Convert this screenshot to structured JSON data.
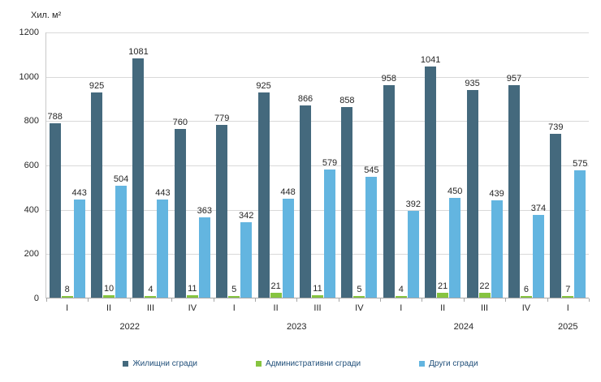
{
  "chart_data": {
    "type": "bar",
    "title": "",
    "ylabel": "Хил. м²",
    "xlabel": "",
    "ylim": [
      0,
      1200
    ],
    "yticks": [
      0,
      200,
      400,
      600,
      800,
      1000,
      1200
    ],
    "grid": true,
    "legend_position": "bottom",
    "categories": [
      "I",
      "II",
      "III",
      "IV",
      "I",
      "II",
      "III",
      "IV",
      "I",
      "II",
      "III",
      "IV",
      "I"
    ],
    "year_groups": [
      {
        "label": "2022",
        "span": 4
      },
      {
        "label": "2023",
        "span": 4
      },
      {
        "label": "2024",
        "span": 4
      },
      {
        "label": "2025",
        "span": 1
      }
    ],
    "series": [
      {
        "name": "Жилищни сгради",
        "color": "#44697d",
        "values": [
          788,
          925,
          1081,
          760,
          779,
          925,
          866,
          858,
          958,
          1041,
          935,
          957,
          739
        ]
      },
      {
        "name": "Административни сгради",
        "color": "#86c440",
        "values": [
          8,
          10,
          4,
          11,
          5,
          21,
          11,
          5,
          4,
          21,
          22,
          6,
          7
        ]
      },
      {
        "name": "Други сгради",
        "color": "#63b5e0",
        "values": [
          443,
          504,
          443,
          363,
          342,
          448,
          579,
          545,
          392,
          450,
          439,
          374,
          575
        ]
      }
    ]
  }
}
